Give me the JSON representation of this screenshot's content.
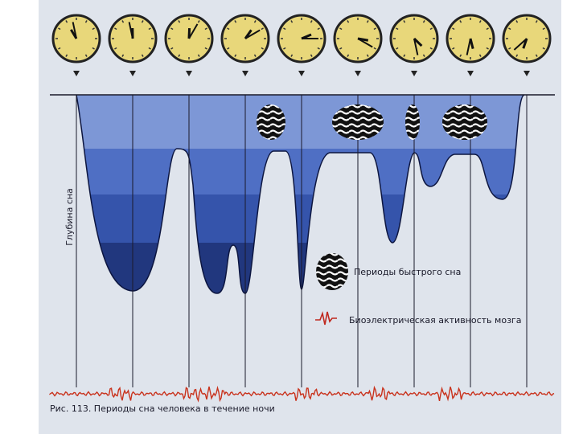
{
  "axis_label": "Глубина сна",
  "legend": {
    "rem": "Периоды быстрого сна",
    "eeg": "Биоэлектрическая активность мозга"
  },
  "caption": "Рис. 113. Периоды сна человека в течение ночи"
}
